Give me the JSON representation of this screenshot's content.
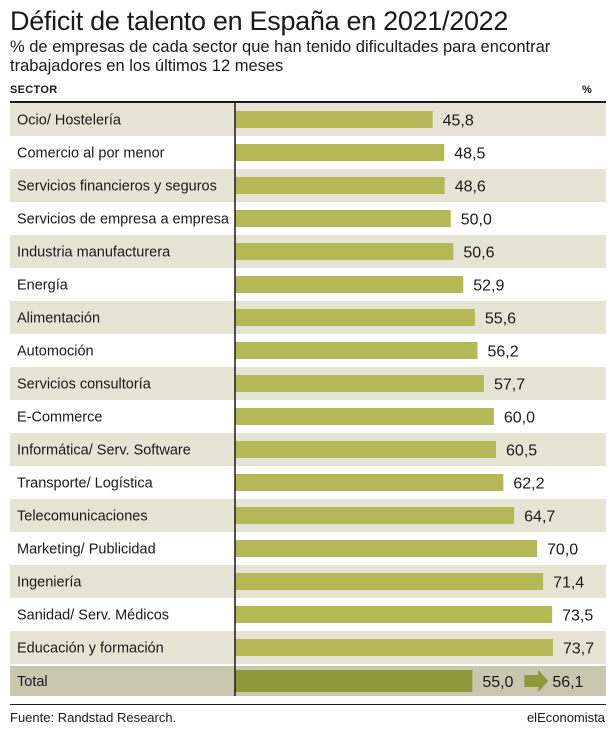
{
  "header": {
    "title": "Déficit de talento en España en 2021/2022",
    "subtitle": "% de empresas de cada sector que han tenido dificultades para encontrar trabajadores en los últimos 12 meses",
    "sector_label": "SECTOR",
    "unit_label": "%"
  },
  "footer": {
    "source": "Fuente: Randstad Research.",
    "brand": "elEconomista"
  },
  "colors": {
    "bar": "#b5b857",
    "total_bar": "#8c9a3b",
    "row_shade": "#e6e4d4",
    "total_row": "#c9c7b0",
    "axis": "#1a1a1a"
  },
  "chart_data": {
    "type": "bar",
    "orientation": "horizontal",
    "categories": [
      "Ocio/ Hostelería",
      "Comercio al por menor",
      "Servicios financieros y seguros",
      "Servicios de empresa a empresa",
      "Industria manufacturera",
      "Energía",
      "Alimentación",
      "Automoción",
      "Servicios consultoría",
      "E-Commerce",
      "Informática/ Serv. Software",
      "Transporte/ Logística",
      "Telecomunicaciones",
      "Marketing/ Publicidad",
      "Ingeniería",
      "Sanidad/ Serv. Médicos",
      "Educación y formación"
    ],
    "values": [
      45.8,
      48.5,
      48.6,
      50.0,
      50.6,
      52.9,
      55.6,
      56.2,
      57.7,
      60.0,
      60.5,
      62.2,
      64.7,
      70.0,
      71.4,
      73.5,
      73.7
    ],
    "value_labels": [
      "45,8",
      "48,5",
      "48,6",
      "50,0",
      "50,6",
      "52,9",
      "55,6",
      "56,2",
      "57,7",
      "60,0",
      "60,5",
      "62,2",
      "64,7",
      "70,0",
      "71,4",
      "73,5",
      "73,7"
    ],
    "total": {
      "label": "Total",
      "from": 55.0,
      "to": 56.1,
      "from_label": "55,0",
      "to_label": "56,1"
    },
    "xlim": [
      0,
      78
    ],
    "grid": false,
    "legend": "none"
  }
}
